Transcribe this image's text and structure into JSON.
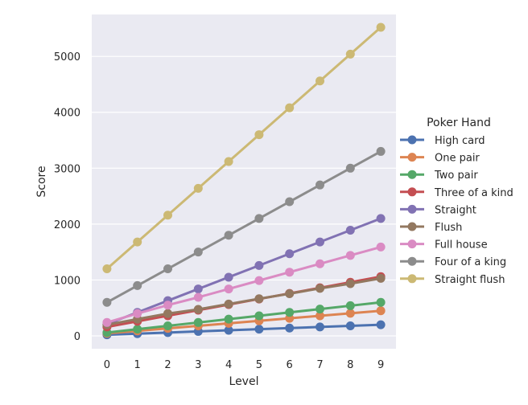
{
  "chart_data": {
    "type": "line",
    "title": "",
    "xlabel": "Level",
    "ylabel": "Score",
    "x": [
      0,
      1,
      2,
      3,
      4,
      5,
      6,
      7,
      8,
      9
    ],
    "xlim": [
      -0.5,
      9.5
    ],
    "ylim": [
      -230,
      5750
    ],
    "yticks": [
      0,
      1000,
      2000,
      3000,
      4000,
      5000
    ],
    "grid": true,
    "legend_title": "Poker Hand",
    "legend_position": "right",
    "background_color": "#eaeaf2",
    "series": [
      {
        "name": "High card",
        "color": "#4c72b0",
        "values": [
          20,
          40,
          60,
          80,
          100,
          120,
          140,
          160,
          180,
          200
        ]
      },
      {
        "name": "One pair",
        "color": "#dd8452",
        "values": [
          45,
          90,
          135,
          180,
          225,
          270,
          315,
          360,
          405,
          450
        ]
      },
      {
        "name": "Two pair",
        "color": "#55a868",
        "values": [
          60,
          120,
          180,
          240,
          300,
          360,
          420,
          480,
          540,
          600
        ]
      },
      {
        "name": "Three of a kind",
        "color": "#c44e52",
        "values": [
          160,
          260,
          360,
          460,
          560,
          660,
          760,
          860,
          960,
          1060
        ]
      },
      {
        "name": "Straight",
        "color": "#8172b3",
        "values": [
          210,
          420,
          630,
          840,
          1050,
          1260,
          1470,
          1680,
          1890,
          2100
        ]
      },
      {
        "name": "Flush",
        "color": "#937860",
        "values": [
          200,
          300,
          400,
          475,
          570,
          665,
          755,
          850,
          935,
          1030
        ]
      },
      {
        "name": "Full house",
        "color": "#da8bc3",
        "values": [
          240,
          400,
          550,
          690,
          840,
          990,
          1140,
          1290,
          1440,
          1590
        ]
      },
      {
        "name": "Four of a king",
        "color": "#8c8c8c",
        "values": [
          600,
          900,
          1200,
          1500,
          1800,
          2100,
          2400,
          2700,
          3000,
          3300
        ]
      },
      {
        "name": "Straight flush",
        "color": "#ccb974",
        "values": [
          1200,
          1680,
          2160,
          2640,
          3120,
          3600,
          4080,
          4560,
          5040,
          5520
        ]
      }
    ]
  }
}
